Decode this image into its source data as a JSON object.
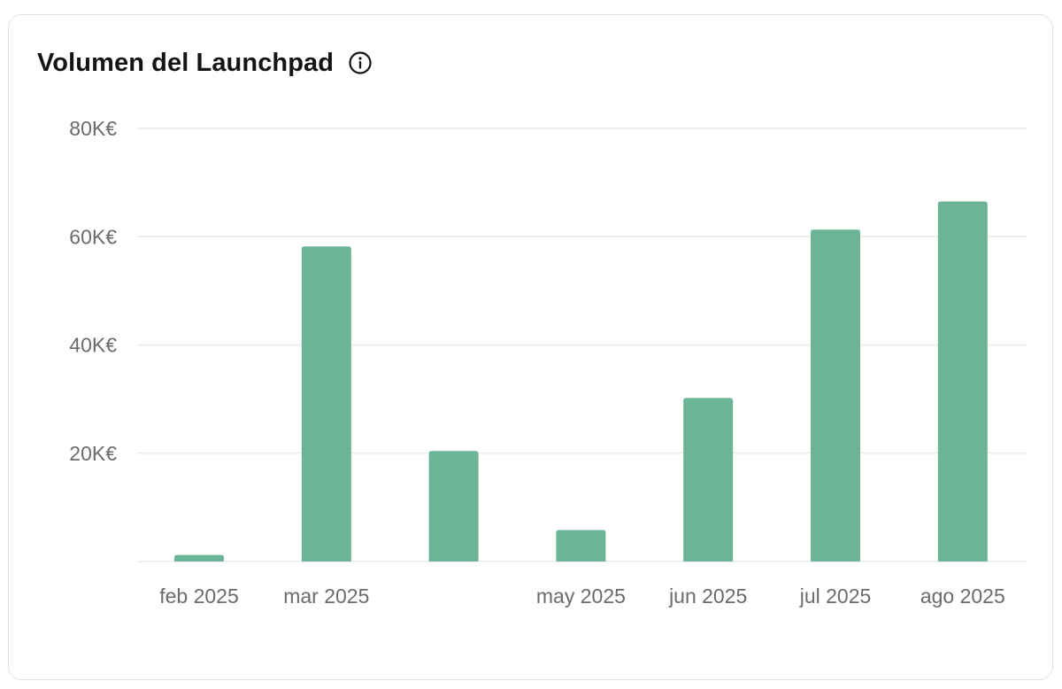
{
  "card": {
    "title": "Volumen del Launchpad",
    "info_icon": "info-circle-icon"
  },
  "colors": {
    "bar": "#6bb596",
    "grid": "#ececec",
    "axis_label": "#6b6b6b",
    "title": "#141414"
  },
  "chart_data": {
    "type": "bar",
    "title": "Volumen del Launchpad",
    "xlabel": "",
    "ylabel": "",
    "categories": [
      "feb 2025",
      "mar 2025",
      "",
      "may 2025",
      "jun 2025",
      "jul 2025",
      "ago 2025"
    ],
    "values": [
      1200,
      58200,
      20400,
      5800,
      30200,
      61300,
      66500
    ],
    "ylim": [
      0,
      80000
    ],
    "yticks": [
      0,
      20000,
      40000,
      60000,
      80000
    ],
    "ytick_labels": [
      "",
      "20K€",
      "40K€",
      "60K€",
      "80K€"
    ],
    "grid": true,
    "legend": "none"
  }
}
